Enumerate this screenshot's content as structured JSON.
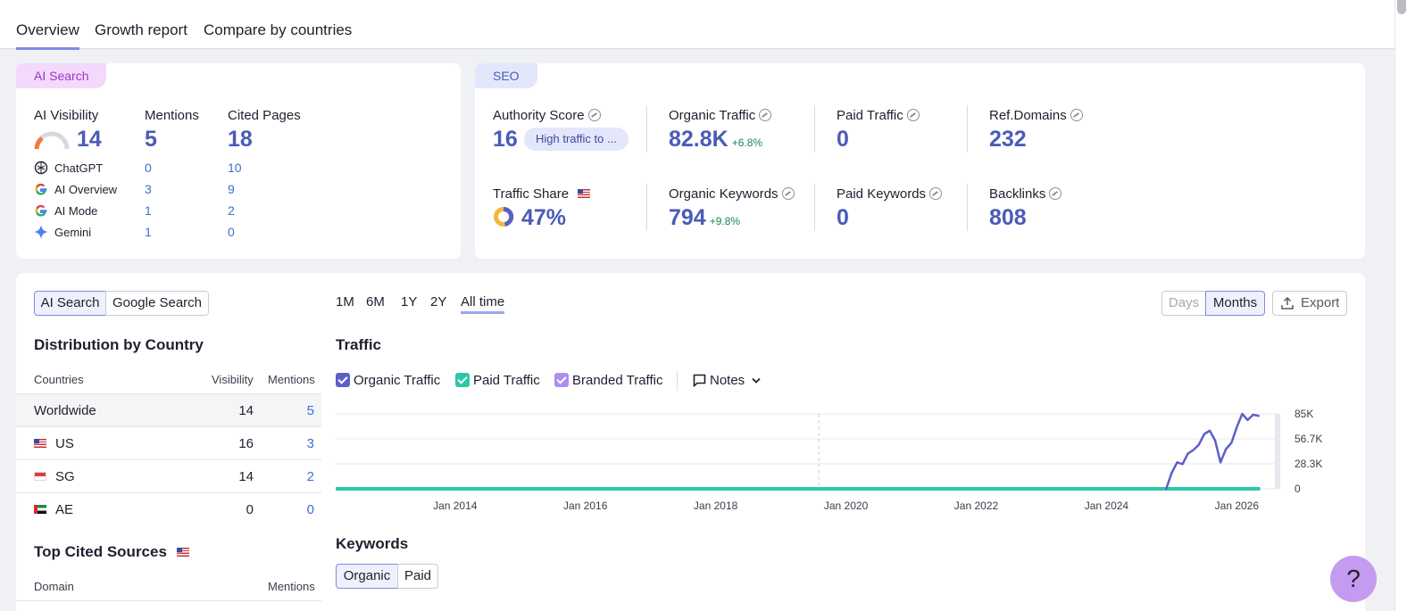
{
  "tabs": [
    "Overview",
    "Growth report",
    "Compare by countries"
  ],
  "ai_card": {
    "label": "AI Search",
    "visibility_label": "AI Visibility",
    "visibility_value": "14",
    "mentions_label": "Mentions",
    "mentions_value": "5",
    "cited_label": "Cited Pages",
    "cited_value": "18",
    "rows": [
      {
        "name": "ChatGPT",
        "mentions": "0",
        "cited": "10"
      },
      {
        "name": "AI Overview",
        "mentions": "3",
        "cited": "9"
      },
      {
        "name": "AI Mode",
        "mentions": "1",
        "cited": "2"
      },
      {
        "name": "Gemini",
        "mentions": "1",
        "cited": "0"
      }
    ]
  },
  "seo_card": {
    "label": "SEO",
    "authority_label": "Authority Score",
    "authority_value": "16",
    "authority_badge": "High traffic to ...",
    "organic_traffic_label": "Organic Traffic",
    "organic_traffic_value": "82.8K",
    "organic_traffic_delta": "+6.8%",
    "paid_traffic_label": "Paid Traffic",
    "paid_traffic_value": "0",
    "ref_domains_label": "Ref.Domains",
    "ref_domains_value": "232",
    "traffic_share_label": "Traffic Share",
    "traffic_share_value": "47%",
    "organic_keywords_label": "Organic Keywords",
    "organic_keywords_value": "794",
    "organic_keywords_delta": "+9.8%",
    "paid_keywords_label": "Paid Keywords",
    "paid_keywords_value": "0",
    "backlinks_label": "Backlinks",
    "backlinks_value": "808"
  },
  "search_toggle": [
    "AI Search",
    "Google Search"
  ],
  "distribution": {
    "title": "Distribution by Country",
    "col_countries": "Countries",
    "col_visibility": "Visibility",
    "col_mentions": "Mentions",
    "rows": [
      {
        "country": "Worldwide",
        "visibility": "14",
        "mentions": "5"
      },
      {
        "country": "US",
        "visibility": "16",
        "mentions": "3"
      },
      {
        "country": "SG",
        "visibility": "14",
        "mentions": "2"
      },
      {
        "country": "AE",
        "visibility": "0",
        "mentions": "0"
      }
    ]
  },
  "top_cited": {
    "title": "Top Cited Sources",
    "col_domain": "Domain",
    "col_mentions": "Mentions"
  },
  "ranges": [
    "1M",
    "6M",
    "1Y",
    "2Y",
    "All time"
  ],
  "granularity": [
    "Days",
    "Months"
  ],
  "export_label": "Export",
  "traffic": {
    "title": "Traffic",
    "legend": [
      "Organic Traffic",
      "Paid Traffic",
      "Branded Traffic"
    ],
    "notes_label": "Notes"
  },
  "keywords": {
    "title": "Keywords",
    "toggle": [
      "Organic",
      "Paid"
    ]
  },
  "help_label": "?",
  "chart_data": {
    "type": "line",
    "x_tick_labels": [
      "Jan 2014",
      "Jan 2016",
      "Jan 2018",
      "Jan 2020",
      "Jan 2022",
      "Jan 2024",
      "Jan 2026"
    ],
    "y_tick_labels": [
      "85K",
      "56.7K",
      "28.3K",
      "0"
    ],
    "ylim": [
      0,
      85000
    ],
    "xlim": [
      "2012-03",
      "2026-09"
    ],
    "series": [
      {
        "name": "Organic Traffic",
        "color": "#5b5fc7",
        "x": [
          "2024-12",
          "2025-01",
          "2025-02",
          "2025-03",
          "2025-04",
          "2025-05",
          "2025-06",
          "2025-07",
          "2025-08",
          "2025-09",
          "2025-10",
          "2025-11",
          "2025-12",
          "2026-01",
          "2026-02",
          "2026-03",
          "2026-04",
          "2026-05"
        ],
        "values": [
          0,
          18000,
          30000,
          28000,
          40000,
          44000,
          50000,
          62000,
          66000,
          55000,
          30000,
          45000,
          52000,
          70000,
          85000,
          78000,
          84000,
          82800
        ]
      },
      {
        "name": "Paid Traffic",
        "color": "#2bc7a8",
        "x": [
          "2012-03",
          "2026-05"
        ],
        "values": [
          0,
          0
        ]
      },
      {
        "name": "Branded Traffic",
        "color": "#b08cf0",
        "x": [
          "2012-03",
          "2026-05"
        ],
        "values": [
          0,
          0
        ]
      }
    ]
  }
}
